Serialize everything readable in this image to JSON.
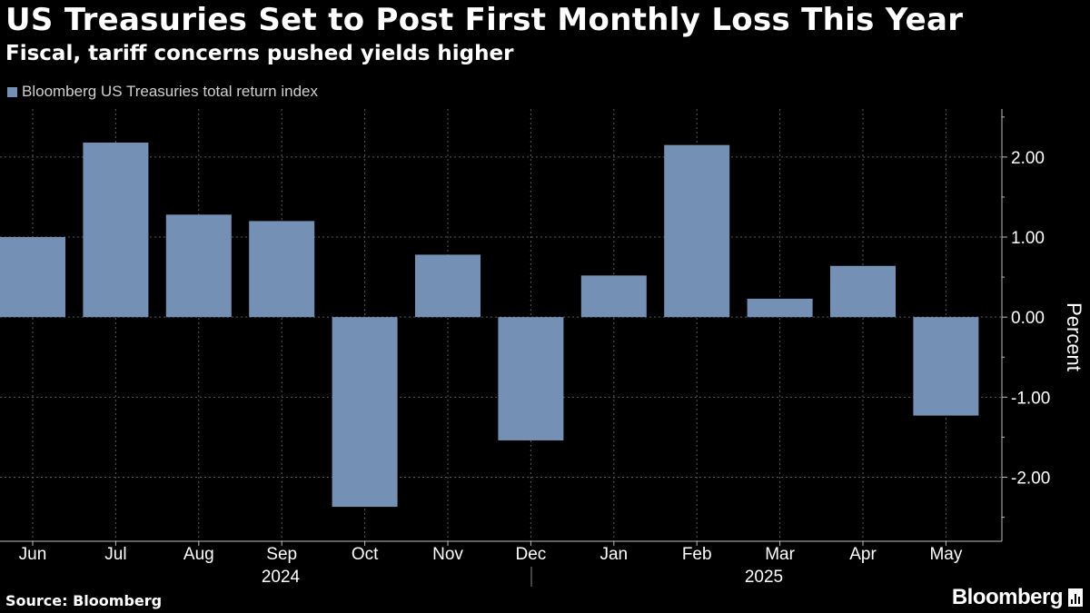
{
  "title": "US Treasuries Set to Post First Monthly Loss This Year",
  "subtitle": "Fiscal, tariff concerns pushed yields higher",
  "legend": {
    "label": "Bloomberg US Treasuries total return index",
    "color": "#7590b5"
  },
  "footer": {
    "source": "Source: Bloomberg",
    "brand": "Bloomberg",
    "brand_icon": "bloomberg-chart-icon"
  },
  "colors": {
    "bar": "#7590b5",
    "background": "#000000",
    "grid": "#5a5a5a",
    "text": "#ffffff"
  },
  "chart_data": {
    "type": "bar",
    "categories": [
      "Jun",
      "Jul",
      "Aug",
      "Sep",
      "Oct",
      "Nov",
      "Dec",
      "Jan",
      "Feb",
      "Mar",
      "Apr",
      "May"
    ],
    "year_labels": [
      {
        "label": "2024",
        "months": [
          "Jun",
          "Jul",
          "Aug",
          "Sep",
          "Oct",
          "Nov",
          "Dec"
        ]
      },
      {
        "label": "2025",
        "months": [
          "Jan",
          "Feb",
          "Mar",
          "Apr",
          "May"
        ]
      }
    ],
    "series": [
      {
        "name": "Bloomberg US Treasuries total return index",
        "values": [
          1.0,
          2.18,
          1.28,
          1.2,
          -2.37,
          0.78,
          -1.54,
          0.52,
          2.15,
          0.23,
          0.64,
          -1.23
        ]
      }
    ],
    "ylabel": "Percent",
    "ylim": [
      -2.8,
      2.6
    ],
    "yticks": [
      2.0,
      1.0,
      0.0,
      -1.0,
      -2.0
    ],
    "ytick_labels": [
      "2.00",
      "1.00",
      "0.00",
      "-1.00",
      "-2.00"
    ],
    "grid": true,
    "legend_position": "top-left"
  }
}
